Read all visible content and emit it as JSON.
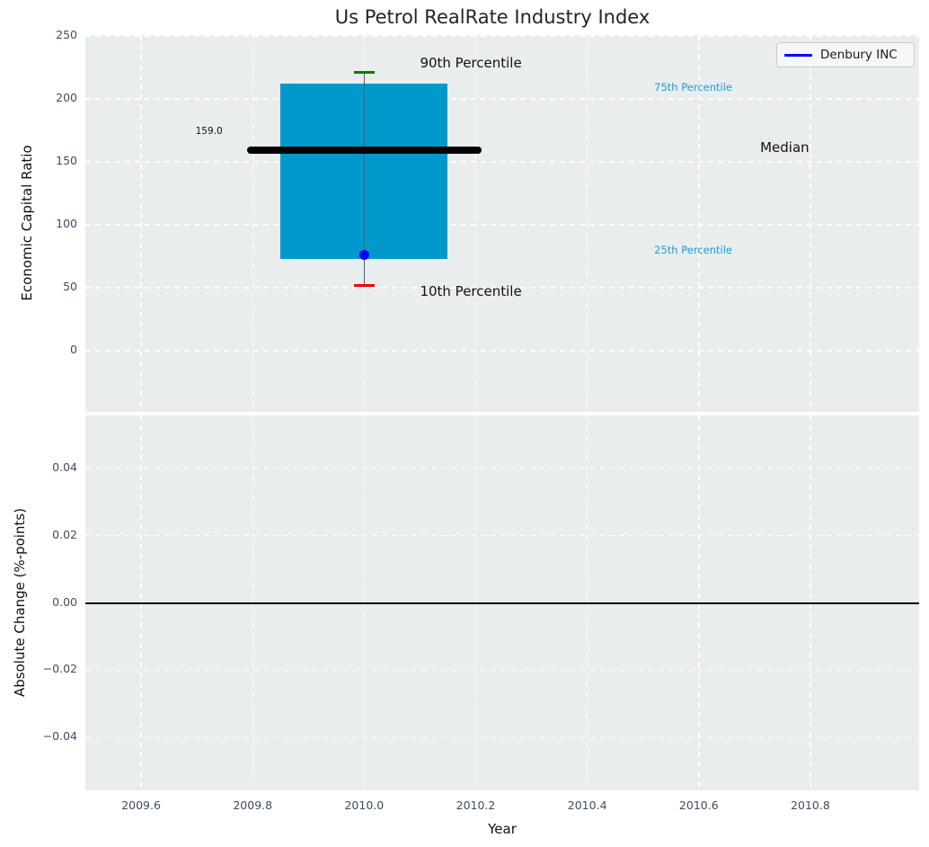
{
  "title": "Us Petrol RealRate Industry Index",
  "legend": {
    "label": "Denbury INC",
    "position": "upper right"
  },
  "colors": {
    "plot_bg": "#e9edee",
    "grid": "rgba(255,255,255,0.9)",
    "tick_label": "#3e4d63",
    "axis_label": "#101010",
    "title": "#242424",
    "box_fill": "#0099cc",
    "median_line": "#000000",
    "whisker": "#555f66",
    "cap_90": "#008000",
    "cap_10": "#ee0000",
    "company_point": "#0000ff",
    "legend_line": "#0000ff",
    "cyan_label": "#1b9cd3",
    "zero_line": "#000000"
  },
  "chart_data": [
    {
      "type": "box",
      "panel": "top",
      "title": "Us Petrol RealRate Industry Index",
      "ylabel": "Economic Capital Ratio",
      "xlim": [
        2009.5,
        2010.995
      ],
      "ylim": [
        -48.6,
        250.7
      ],
      "grid": true,
      "yticks": {
        "values": [
          0,
          50,
          100,
          150,
          200,
          250
        ],
        "labels": [
          "0",
          "50",
          "100",
          "150",
          "200",
          "250"
        ]
      },
      "series": [
        {
          "name": "industry-percentiles",
          "x": 2010.0,
          "p10": 52,
          "p25": 73,
          "median": 159.0,
          "p75": 212,
          "p90": 221,
          "median_label": "159.0",
          "box_width": 0.3,
          "median_line_width": 0.42,
          "cap_width": 0.036
        }
      ],
      "company_point": {
        "name": "Denbury INC",
        "x": 2010.0,
        "y": 76
      },
      "annotations": [
        {
          "text": "90th Percentile",
          "x": 2010.1,
          "y": 227,
          "color": "#111111",
          "size": 15,
          "ha": "left"
        },
        {
          "text": "10th Percentile",
          "x": 2010.1,
          "y": 46,
          "color": "#111111",
          "size": 15,
          "ha": "left"
        },
        {
          "text": "75th Percentile",
          "x": 2010.52,
          "y": 208,
          "color": "#1b9cd3",
          "size": 11.5,
          "ha": "left"
        },
        {
          "text": "25th Percentile",
          "x": 2010.52,
          "y": 79,
          "color": "#1b9cd3",
          "size": 11.5,
          "ha": "left"
        },
        {
          "text": "Median",
          "x": 2010.71,
          "y": 160,
          "color": "#111111",
          "size": 15,
          "ha": "left"
        },
        {
          "text": "159.0",
          "x": 2009.746,
          "y": 173,
          "color": "#111111",
          "size": 10.5,
          "ha": "right"
        }
      ]
    },
    {
      "type": "line",
      "panel": "bottom",
      "ylabel": "Absolute Change (%-points)",
      "xlabel": "Year",
      "xlim": [
        2009.5,
        2010.995
      ],
      "ylim": [
        -0.0557,
        0.0557
      ],
      "grid": true,
      "yticks": {
        "values": [
          0.04,
          0.02,
          0.0,
          -0.02,
          -0.04
        ],
        "labels": [
          "0.04",
          "0.02",
          "0.00",
          "−0.02",
          "−0.04"
        ]
      },
      "xticks": {
        "values": [
          2009.6,
          2009.8,
          2010.0,
          2010.2,
          2010.4,
          2010.6,
          2010.8
        ],
        "labels": [
          "2009.6",
          "2009.8",
          "2010.0",
          "2010.2",
          "2010.4",
          "2010.6",
          "2010.8"
        ]
      },
      "zero_line": 0.0,
      "series": []
    }
  ]
}
